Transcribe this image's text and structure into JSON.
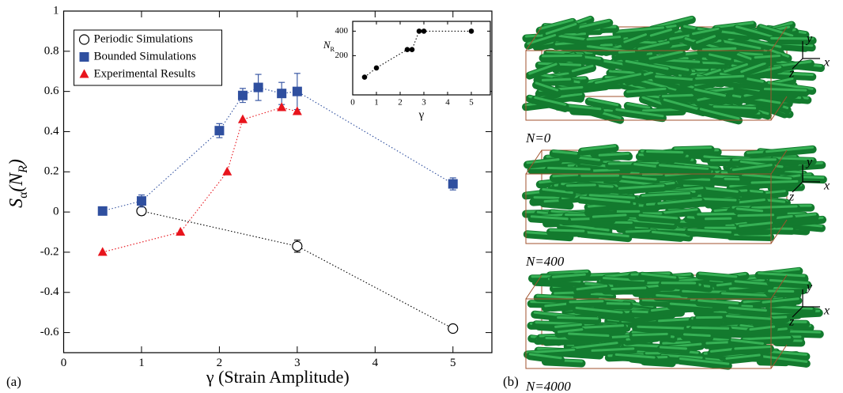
{
  "chart_data": [
    {
      "type": "scatter",
      "xlabel": "γ (Strain Amplitude)",
      "ylabel": [
        "S",
        "α",
        "(N",
        "R",
        ")"
      ],
      "xlim": [
        0,
        5.5
      ],
      "xticks": [
        0,
        1,
        2,
        3,
        4,
        5
      ],
      "ylim": [
        -0.7,
        1
      ],
      "yticks": [
        -0.6,
        -0.4,
        -0.2,
        0,
        0.2,
        0.4,
        0.6,
        0.8,
        1
      ],
      "legend": "upper left",
      "series": [
        {
          "name": "Periodic Simulations",
          "color": "#000000",
          "marker": "open-circle",
          "x": [
            1,
            3,
            5
          ],
          "values": [
            0.005,
            -0.17,
            -0.58
          ],
          "errors": [
            0.02,
            0.03,
            0.015
          ]
        },
        {
          "name": "Bounded Simulations",
          "color": "#2f4f9f",
          "marker": "square",
          "x": [
            0.5,
            1,
            2,
            2.3,
            2.5,
            2.8,
            3,
            5
          ],
          "values": [
            0.005,
            0.055,
            0.405,
            0.58,
            0.62,
            0.59,
            0.6,
            0.14
          ],
          "errors": [
            0.005,
            0.03,
            0.035,
            0.035,
            0.065,
            0.055,
            0.09,
            0.03
          ]
        },
        {
          "name": "Experimental Results",
          "color": "#e8141c",
          "marker": "triangle",
          "x": [
            0.5,
            1.5,
            2.1,
            2.3,
            2.8,
            3
          ],
          "values": [
            -0.2,
            -0.1,
            0.2,
            0.46,
            0.52,
            0.5
          ]
        }
      ]
    },
    {
      "type": "line",
      "xlabel": "γ",
      "ylabel": [
        "N",
        "R"
      ],
      "xlim": [
        0,
        5.8
      ],
      "xticks": [
        0,
        1,
        2,
        3,
        4,
        5
      ],
      "ylim": [
        -120,
        480
      ],
      "yticks": [
        200,
        400
      ],
      "series": [
        {
          "color": "#000000",
          "x": [
            0.5,
            1,
            2.3,
            2.5,
            2.8,
            3,
            5
          ],
          "values": [
            25,
            100,
            250,
            250,
            400,
            400,
            400
          ]
        }
      ]
    }
  ],
  "panels": [
    "(a)",
    "(b)"
  ],
  "snapshots": [
    {
      "label": "N=0",
      "axes": [
        "y",
        "x",
        "z"
      ]
    },
    {
      "label": "N=400",
      "axes": [
        "y",
        "x",
        "z"
      ]
    },
    {
      "label": "N=4000",
      "axes": [
        "y",
        "x",
        "z"
      ]
    }
  ]
}
